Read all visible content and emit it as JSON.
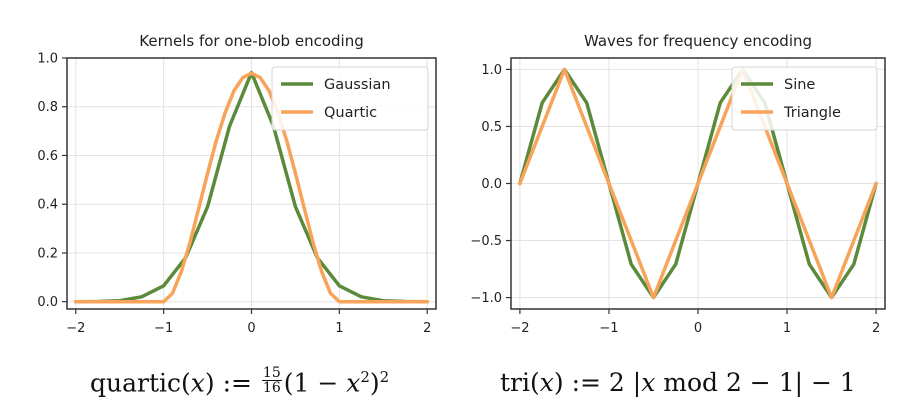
{
  "chart_data": [
    {
      "type": "line",
      "title": "Kernels for one-blob encoding",
      "xlim": [
        -2.1,
        2.1
      ],
      "ylim": [
        -0.03,
        1.0
      ],
      "xticks": [
        -2,
        -1,
        0,
        1,
        2
      ],
      "xtick_labels": [
        "−2",
        "−1",
        "0",
        "1",
        "2"
      ],
      "yticks": [
        0.0,
        0.2,
        0.4,
        0.6,
        0.8,
        1.0
      ],
      "ytick_labels": [
        "0.0",
        "0.2",
        "0.4",
        "0.6",
        "0.8",
        "1.0"
      ],
      "grid": true,
      "legend": "top-right",
      "series": [
        {
          "name": "Gaussian",
          "color": "#5a8a3a",
          "x": [
            -2.0,
            -1.75,
            -1.5,
            -1.25,
            -1.0,
            -0.75,
            -0.5,
            -0.25,
            0.0,
            0.25,
            0.5,
            0.75,
            1.0,
            1.25,
            1.5,
            1.75,
            2.0
          ],
          "y": [
            0.0,
            0.001,
            0.004,
            0.02,
            0.065,
            0.18,
            0.39,
            0.72,
            0.94,
            0.72,
            0.39,
            0.18,
            0.065,
            0.02,
            0.004,
            0.001,
            0.0
          ]
        },
        {
          "name": "Quartic",
          "color": "#f7a45a",
          "x": [
            -2.0,
            -1.5,
            -1.0,
            -0.9,
            -0.8,
            -0.7,
            -0.6,
            -0.5,
            -0.4,
            -0.3,
            -0.2,
            -0.1,
            0.0,
            0.1,
            0.2,
            0.3,
            0.4,
            0.5,
            0.6,
            0.7,
            0.8,
            0.9,
            1.0,
            1.5,
            2.0
          ],
          "y": [
            0.0,
            0.0,
            0.0,
            0.034,
            0.122,
            0.243,
            0.384,
            0.527,
            0.662,
            0.775,
            0.865,
            0.919,
            0.9375,
            0.919,
            0.865,
            0.775,
            0.662,
            0.527,
            0.384,
            0.243,
            0.122,
            0.034,
            0.0,
            0.0,
            0.0
          ]
        }
      ]
    },
    {
      "type": "line",
      "title": "Waves for frequency encoding",
      "xlim": [
        -2.1,
        2.1
      ],
      "ylim": [
        -1.1,
        1.1
      ],
      "xticks": [
        -2,
        -1,
        0,
        1,
        2
      ],
      "xtick_labels": [
        "−2",
        "−1",
        "0",
        "1",
        "2"
      ],
      "yticks": [
        -1.0,
        -0.5,
        0.0,
        0.5,
        1.0
      ],
      "ytick_labels": [
        "−1.0",
        "−0.5",
        "0.0",
        "0.5",
        "1.0"
      ],
      "grid": true,
      "legend": "top-right",
      "series": [
        {
          "name": "Sine",
          "color": "#5a8a3a",
          "x": [
            -2.0,
            -1.75,
            -1.5,
            -1.25,
            -1.0,
            -0.75,
            -0.5,
            -0.25,
            0.0,
            0.25,
            0.5,
            0.75,
            1.0,
            1.25,
            1.5,
            1.75,
            2.0
          ],
          "y": [
            0.0,
            0.707,
            1.0,
            0.707,
            0.0,
            -0.707,
            -1.0,
            -0.707,
            0.0,
            0.707,
            1.0,
            0.707,
            0.0,
            -0.707,
            -1.0,
            -0.707,
            0.0
          ]
        },
        {
          "name": "Triangle",
          "color": "#f7a45a",
          "x": [
            -2.0,
            -1.5,
            -0.5,
            0.5,
            1.5,
            2.0
          ],
          "y": [
            0.0,
            1.0,
            -1.0,
            1.0,
            -1.0,
            0.0
          ]
        }
      ]
    }
  ],
  "formulas": {
    "left": {
      "lhs_fn": "quartic",
      "lhs_var": "x",
      "assign": " := ",
      "frac_num": "15",
      "frac_den": "16",
      "body_open": "(1 − ",
      "body_var": "x",
      "body_exp": "2",
      "body_close": ")",
      "outer_exp": "2"
    },
    "right": {
      "lhs_fn": "tri",
      "lhs_var": "x",
      "assign": " := ",
      "body_pre": "2 |",
      "body_var": "x",
      "body_post": " mod 2 − 1| − 1"
    }
  }
}
